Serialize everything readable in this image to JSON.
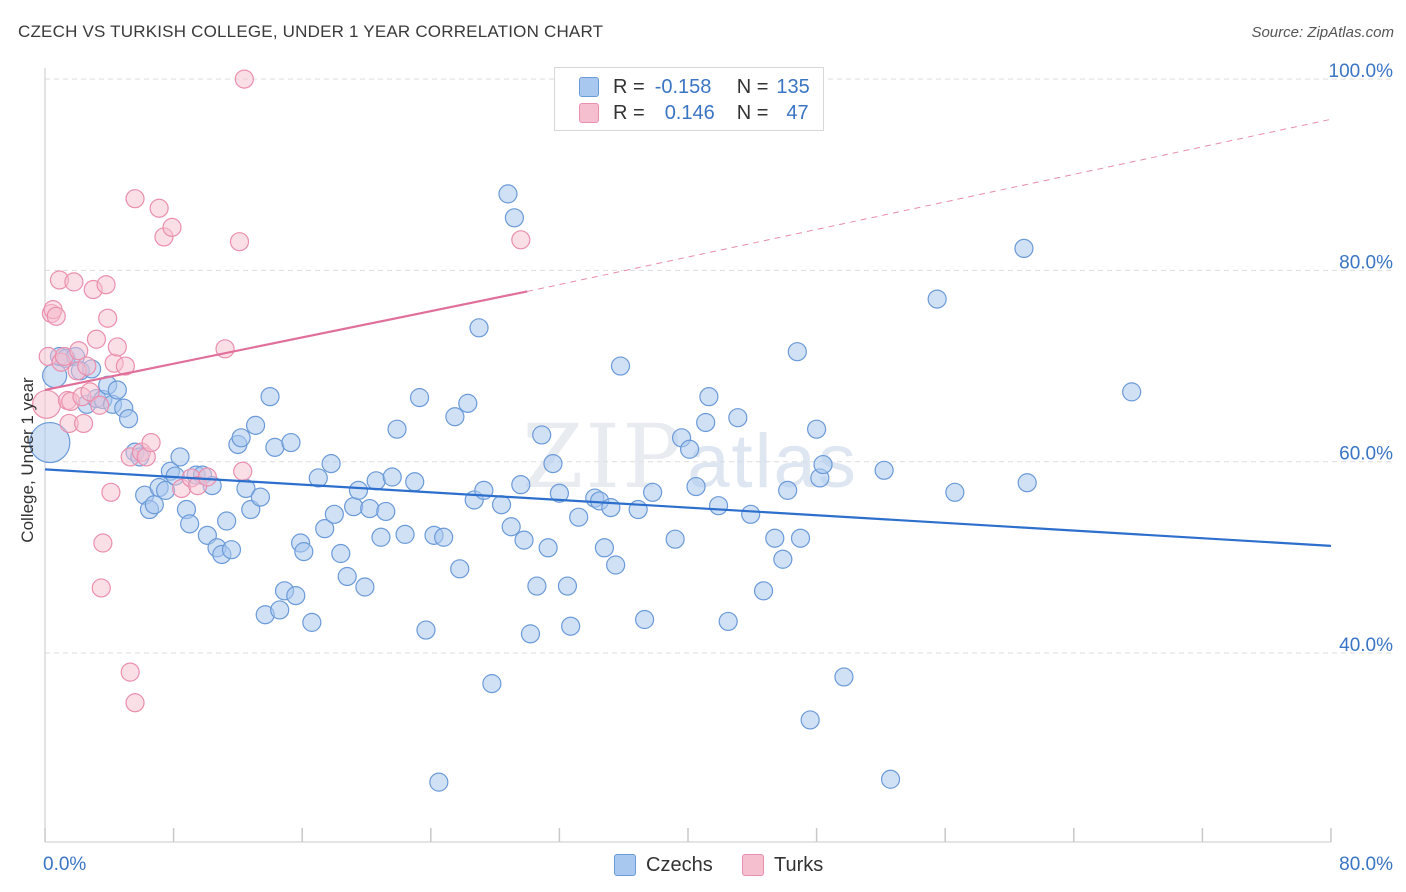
{
  "header": {
    "title": "CZECH VS TURKISH COLLEGE, UNDER 1 YEAR CORRELATION CHART",
    "source": "Source: ZipAtlas.com"
  },
  "legend": {
    "czechs": {
      "r_label": "R =",
      "r_value": "-0.158",
      "n_label": "N =",
      "n_value": "135"
    },
    "turks": {
      "r_label": "R =",
      "r_value": "0.146",
      "n_label": "N =",
      "n_value": "47"
    }
  },
  "bottom_legend": {
    "czechs": "Czechs",
    "turks": "Turks"
  },
  "colors": {
    "czech_fill": "#a9c8ef",
    "czech_stroke": "#6b9ad8",
    "czech_line": "#2d6fcc",
    "turk_fill": "#f6bfd0",
    "turk_stroke": "#ea8fae",
    "turk_line": "#e0709a",
    "axis_label": "#3a75c4"
  },
  "chart_data": {
    "type": "scatter",
    "xlabel": "",
    "ylabel": "College, Under 1 year",
    "xlim": [
      0,
      80
    ],
    "ylim": [
      18,
      105
    ],
    "x_tick_labels": [
      "0.0%",
      "80.0%"
    ],
    "y_ticks": [
      40,
      60,
      80,
      100
    ],
    "y_tick_labels": [
      "40.0%",
      "60.0%",
      "80.0%",
      "100.0%"
    ],
    "grid": "horizontal dashed",
    "legend_position": "top-center",
    "watermark": "ZIPatlas",
    "series": [
      {
        "name": "Czechs",
        "R": -0.158,
        "N": 135,
        "trend": {
          "x": [
            0,
            80
          ],
          "y": [
            59.2,
            51.2
          ]
        },
        "points": [
          [
            0.3,
            62
          ],
          [
            0.6,
            69
          ],
          [
            0.9,
            71
          ],
          [
            1.3,
            70.8
          ],
          [
            1.9,
            71
          ],
          [
            2.2,
            69.5
          ],
          [
            2.6,
            66
          ],
          [
            2.9,
            69.7
          ],
          [
            3.2,
            66.6
          ],
          [
            3.6,
            66.5
          ],
          [
            3.9,
            68
          ],
          [
            4.2,
            66
          ],
          [
            4.5,
            67.5
          ],
          [
            4.9,
            65.6
          ],
          [
            5.2,
            64.5
          ],
          [
            5.6,
            61
          ],
          [
            5.9,
            60.5
          ],
          [
            6.2,
            56.5
          ],
          [
            6.5,
            55
          ],
          [
            6.8,
            55.5
          ],
          [
            7.1,
            57.3
          ],
          [
            7.5,
            57
          ],
          [
            7.8,
            59
          ],
          [
            8.1,
            58.5
          ],
          [
            8.4,
            60.5
          ],
          [
            8.8,
            55
          ],
          [
            9.0,
            53.5
          ],
          [
            9.4,
            58.6
          ],
          [
            9.8,
            58.6
          ],
          [
            10.1,
            52.3
          ],
          [
            10.4,
            57.5
          ],
          [
            10.7,
            51
          ],
          [
            11.0,
            50.3
          ],
          [
            11.3,
            53.8
          ],
          [
            11.6,
            50.8
          ],
          [
            12.0,
            61.8
          ],
          [
            12.2,
            62.5
          ],
          [
            12.5,
            57.2
          ],
          [
            12.8,
            55
          ],
          [
            13.1,
            63.8
          ],
          [
            13.4,
            56.3
          ],
          [
            13.7,
            44
          ],
          [
            14.0,
            66.8
          ],
          [
            14.3,
            61.5
          ],
          [
            14.6,
            44.5
          ],
          [
            14.9,
            46.5
          ],
          [
            15.3,
            62
          ],
          [
            15.6,
            46
          ],
          [
            15.9,
            51.5
          ],
          [
            16.1,
            50.6
          ],
          [
            16.6,
            43.2
          ],
          [
            17.0,
            58.3
          ],
          [
            17.4,
            53
          ],
          [
            17.8,
            59.8
          ],
          [
            18.0,
            54.5
          ],
          [
            18.4,
            50.4
          ],
          [
            18.8,
            48
          ],
          [
            19.2,
            55.3
          ],
          [
            19.5,
            57
          ],
          [
            19.9,
            46.9
          ],
          [
            20.2,
            55.1
          ],
          [
            20.6,
            58
          ],
          [
            20.9,
            52.1
          ],
          [
            21.2,
            54.8
          ],
          [
            21.6,
            58.4
          ],
          [
            21.9,
            63.4
          ],
          [
            22.4,
            52.4
          ],
          [
            23.0,
            57.9
          ],
          [
            23.3,
            66.7
          ],
          [
            23.7,
            42.4
          ],
          [
            24.2,
            52.3
          ],
          [
            24.5,
            26.5
          ],
          [
            24.8,
            52.1
          ],
          [
            25.5,
            64.7
          ],
          [
            25.8,
            48.8
          ],
          [
            26.3,
            66.1
          ],
          [
            26.7,
            56
          ],
          [
            27.0,
            74
          ],
          [
            27.3,
            57
          ],
          [
            27.8,
            36.8
          ],
          [
            28.4,
            55.5
          ],
          [
            28.8,
            88
          ],
          [
            29.0,
            53.2
          ],
          [
            29.2,
            85.5
          ],
          [
            29.6,
            57.6
          ],
          [
            29.8,
            51.8
          ],
          [
            30.2,
            42
          ],
          [
            30.6,
            47
          ],
          [
            30.9,
            62.8
          ],
          [
            31.3,
            51
          ],
          [
            31.6,
            59.8
          ],
          [
            32.0,
            56.7
          ],
          [
            32.5,
            47
          ],
          [
            32.7,
            42.8
          ],
          [
            33.2,
            54.2
          ],
          [
            34.2,
            56.2
          ],
          [
            34.5,
            55.9
          ],
          [
            34.8,
            51
          ],
          [
            35.2,
            55.2
          ],
          [
            35.5,
            49.2
          ],
          [
            35.8,
            70
          ],
          [
            36.9,
            55
          ],
          [
            37.3,
            43.5
          ],
          [
            37.8,
            56.8
          ],
          [
            39.2,
            51.9
          ],
          [
            39.6,
            62.5
          ],
          [
            40.1,
            61.3
          ],
          [
            40.5,
            57.4
          ],
          [
            41.1,
            64.1
          ],
          [
            41.3,
            66.8
          ],
          [
            41.9,
            55.4
          ],
          [
            42.5,
            43.3
          ],
          [
            43.1,
            64.6
          ],
          [
            43.9,
            54.5
          ],
          [
            44.7,
            46.5
          ],
          [
            45.4,
            52
          ],
          [
            45.9,
            49.8
          ],
          [
            46.2,
            57
          ],
          [
            46.8,
            71.5
          ],
          [
            47.0,
            52
          ],
          [
            47.6,
            33
          ],
          [
            48.0,
            63.4
          ],
          [
            48.2,
            58.3
          ],
          [
            48.4,
            59.7
          ],
          [
            49.7,
            37.5
          ],
          [
            52.2,
            59.1
          ],
          [
            52.6,
            26.8
          ],
          [
            55.5,
            77
          ],
          [
            56.6,
            56.8
          ],
          [
            60.9,
            82.3
          ],
          [
            61.1,
            57.8
          ],
          [
            67.6,
            67.3
          ]
        ]
      },
      {
        "name": "Turks",
        "R": 0.146,
        "N": 47,
        "trend_solid": {
          "x": [
            0,
            30
          ],
          "y": [
            67.5,
            77.8
          ]
        },
        "trend_dashed": {
          "x": [
            30,
            80
          ],
          "y": [
            77.8,
            95.8
          ]
        },
        "points": [
          [
            0.1,
            66
          ],
          [
            0.2,
            71
          ],
          [
            0.4,
            75.5
          ],
          [
            0.5,
            75.9
          ],
          [
            0.7,
            75.2
          ],
          [
            0.9,
            79
          ],
          [
            1.0,
            70.4
          ],
          [
            1.2,
            71
          ],
          [
            1.4,
            66.4
          ],
          [
            1.5,
            64
          ],
          [
            1.6,
            66.3
          ],
          [
            1.8,
            78.8
          ],
          [
            2.0,
            69.5
          ],
          [
            2.1,
            71.6
          ],
          [
            2.3,
            66.8
          ],
          [
            2.4,
            64
          ],
          [
            2.6,
            70
          ],
          [
            2.8,
            67.3
          ],
          [
            3.0,
            78
          ],
          [
            3.2,
            72.8
          ],
          [
            3.4,
            65.9
          ],
          [
            3.6,
            51.5
          ],
          [
            3.8,
            78.5
          ],
          [
            3.9,
            75
          ],
          [
            4.1,
            56.8
          ],
          [
            4.3,
            70.3
          ],
          [
            4.5,
            72
          ],
          [
            5.0,
            70
          ],
          [
            5.3,
            60.5
          ],
          [
            5.6,
            87.5
          ],
          [
            6.0,
            61
          ],
          [
            6.3,
            60.5
          ],
          [
            6.6,
            62
          ],
          [
            7.1,
            86.5
          ],
          [
            7.4,
            83.5
          ],
          [
            7.9,
            84.5
          ],
          [
            8.5,
            57.2
          ],
          [
            9.1,
            58.3
          ],
          [
            9.5,
            57.5
          ],
          [
            10.1,
            58.4
          ],
          [
            11.2,
            71.8
          ],
          [
            12.1,
            83
          ],
          [
            12.3,
            59
          ],
          [
            12.4,
            100
          ],
          [
            29.6,
            83.2
          ],
          [
            5.3,
            38
          ],
          [
            5.6,
            34.8
          ],
          [
            3.5,
            46.8
          ]
        ]
      }
    ]
  }
}
